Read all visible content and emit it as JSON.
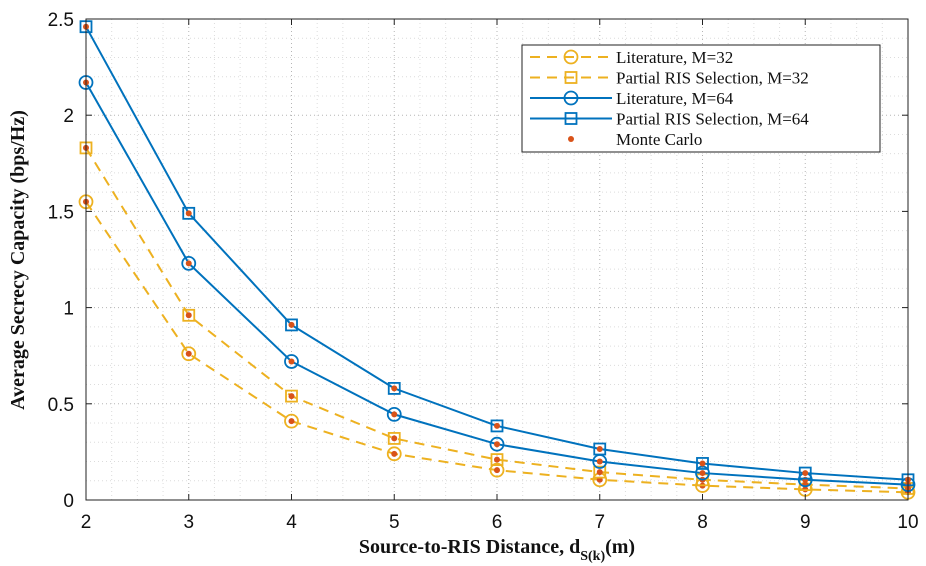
{
  "chart_data": {
    "type": "line",
    "xlabel": "Source-to-RIS Distance, d",
    "xlabel_sub": "S(k)",
    "xlabel_unit": "(m)",
    "ylabel": "Average Secrecy Capacity (bps/Hz)",
    "xlim": [
      2,
      10
    ],
    "ylim": [
      0,
      2.5
    ],
    "x_ticks": [
      "2",
      "3",
      "4",
      "5",
      "6",
      "7",
      "8",
      "9",
      "10"
    ],
    "y_ticks": [
      "0",
      "0.5",
      "1",
      "1.5",
      "2",
      "2.5"
    ],
    "x": [
      2,
      3,
      4,
      5,
      6,
      7,
      8,
      9,
      10
    ],
    "grid": true,
    "legend_position": "top-right",
    "colors": {
      "m32": "#EDB120",
      "m64": "#0072BD",
      "monte_carlo": "#D95319"
    },
    "series": [
      {
        "name": "Literature, M=32",
        "color_key": "m32",
        "dash": true,
        "marker": "circle",
        "values": [
          1.55,
          0.76,
          0.41,
          0.24,
          0.155,
          0.105,
          0.075,
          0.055,
          0.04
        ]
      },
      {
        "name": "Partial RIS Selection, M=32",
        "color_key": "m32",
        "dash": true,
        "marker": "square",
        "values": [
          1.83,
          0.96,
          0.54,
          0.32,
          0.21,
          0.145,
          0.105,
          0.08,
          0.06
        ]
      },
      {
        "name": "Literature, M=64",
        "color_key": "m64",
        "dash": false,
        "marker": "circle",
        "values": [
          2.17,
          1.23,
          0.72,
          0.445,
          0.29,
          0.2,
          0.14,
          0.105,
          0.08
        ]
      },
      {
        "name": "Partial RIS Selection, M=64",
        "color_key": "m64",
        "dash": false,
        "marker": "square",
        "values": [
          2.46,
          1.49,
          0.91,
          0.58,
          0.385,
          0.265,
          0.19,
          0.14,
          0.105
        ]
      }
    ],
    "monte_carlo": {
      "name": "Monte Carlo",
      "color_key": "monte_carlo"
    }
  }
}
